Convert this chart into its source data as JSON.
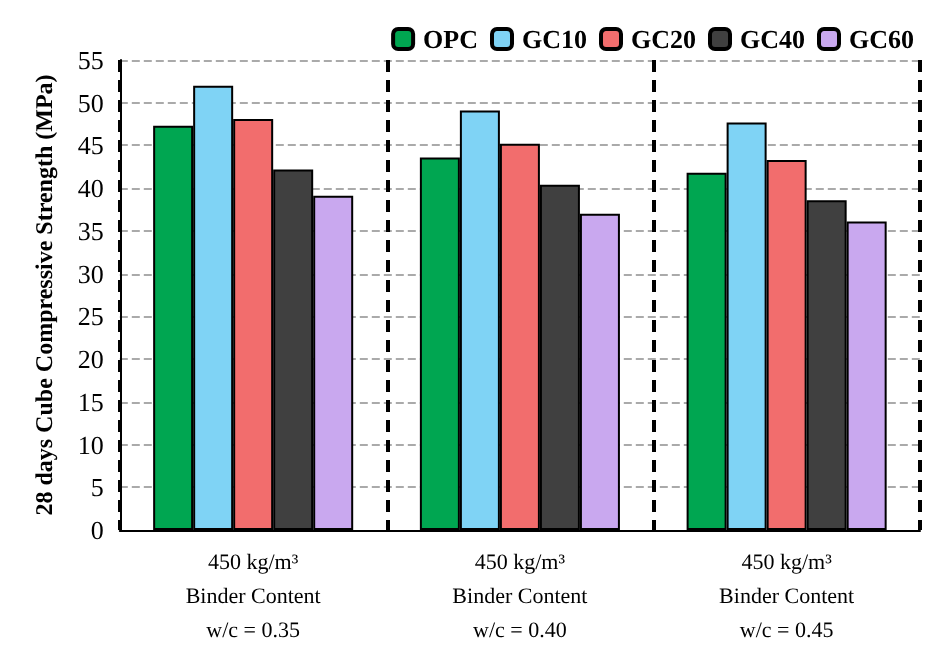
{
  "chart_data": {
    "type": "bar",
    "ylabel": "28 days Cube Compressive Strength (MPa)",
    "categories": [
      "450 kg/m³\nBinder Content\nw/c = 0.35",
      "450 kg/m³\nBinder Content\nw/c = 0.40",
      "450 kg/m³\nBinder Content\nw/c = 0.45"
    ],
    "series": [
      {
        "name": "OPC",
        "color": "#00a651",
        "values": [
          47.3,
          43.6,
          41.8
        ]
      },
      {
        "name": "GC10",
        "color": "#7fd3f5",
        "values": [
          52.0,
          49.1,
          47.7
        ]
      },
      {
        "name": "GC20",
        "color": "#f26d6d",
        "values": [
          48.1,
          45.2,
          43.3
        ]
      },
      {
        "name": "GC40",
        "color": "#404040",
        "values": [
          42.2,
          40.4,
          38.6
        ]
      },
      {
        "name": "GC60",
        "color": "#c9a8ef",
        "values": [
          39.1,
          37.0,
          36.1
        ]
      }
    ],
    "ylim": [
      0,
      55
    ],
    "yticks": [
      0,
      5,
      10,
      15,
      20,
      25,
      30,
      35,
      40,
      45,
      50,
      55
    ],
    "grid": true,
    "legend": "top right"
  }
}
